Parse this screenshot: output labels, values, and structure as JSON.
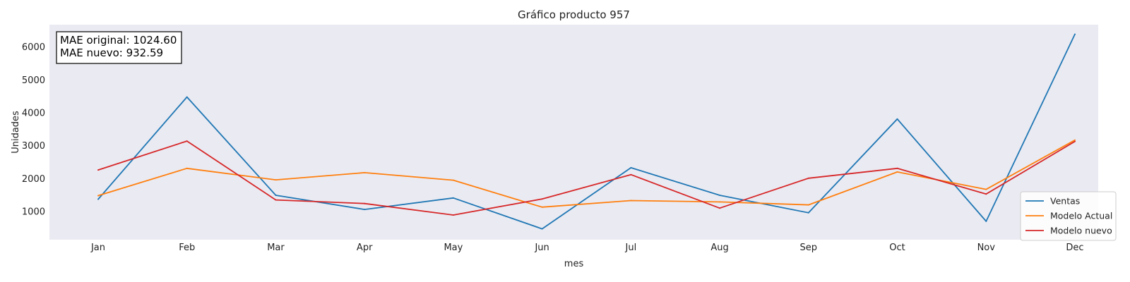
{
  "chart_data": {
    "type": "line",
    "title": "Gráfico producto 957",
    "xlabel": "mes",
    "ylabel": "Unidades",
    "categories": [
      "Jan",
      "Feb",
      "Mar",
      "Apr",
      "May",
      "Jun",
      "Jul",
      "Aug",
      "Sep",
      "Oct",
      "Nov",
      "Dec"
    ],
    "ylim": [
      140,
      6680
    ],
    "yticks": [
      1000,
      2000,
      3000,
      4000,
      5000,
      6000
    ],
    "grid": false,
    "legend_position": "bottom-right",
    "background_color": "#eaeaf2",
    "series": [
      {
        "name": "Ventas",
        "color": "#1f77b4",
        "values": [
          1370,
          4480,
          1490,
          1060,
          1410,
          470,
          2330,
          1490,
          960,
          3810,
          700,
          6390
        ]
      },
      {
        "name": "Modelo Actual",
        "color": "#ff7f0e",
        "values": [
          1480,
          2310,
          1960,
          2180,
          1950,
          1130,
          1330,
          1290,
          1200,
          2200,
          1670,
          3170
        ]
      },
      {
        "name": "Modelo nuevo",
        "color": "#d62728",
        "values": [
          2260,
          3140,
          1350,
          1240,
          890,
          1380,
          2120,
          1100,
          2010,
          2310,
          1530,
          3130
        ]
      }
    ],
    "annotations": [
      "MAE original: 1024.60",
      "MAE nuevo: 932.59"
    ]
  }
}
